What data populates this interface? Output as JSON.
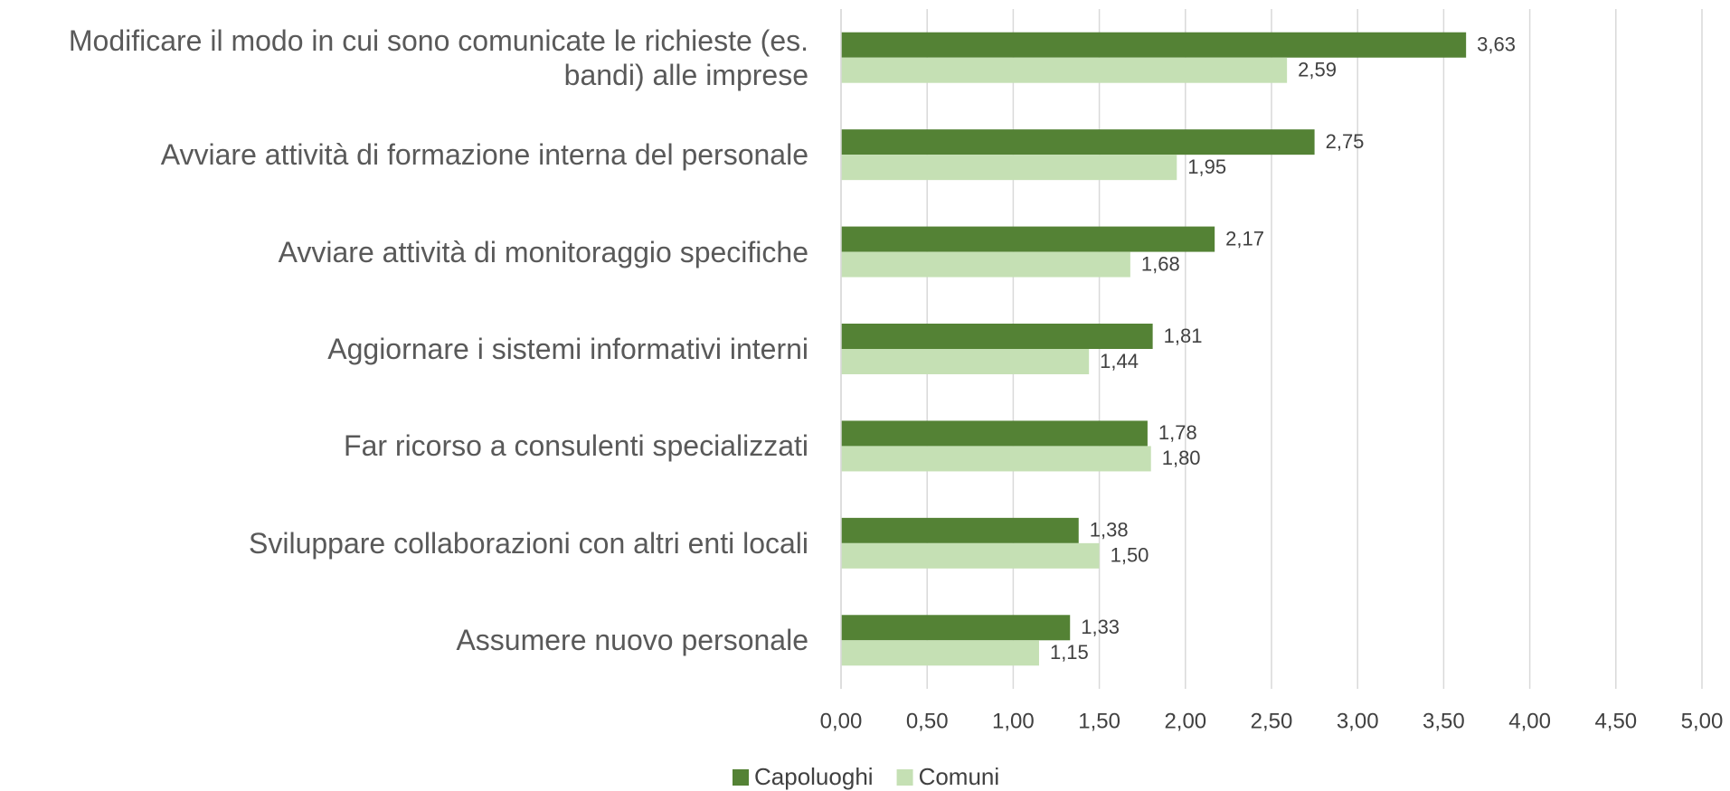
{
  "chart_data": {
    "type": "hbar",
    "categories": [
      "Modificare il modo in cui sono comunicate le richieste (es. bandi) alle imprese",
      "Avviare attività di formazione interna del personale",
      "Avviare attività di monitoraggio specifiche",
      "Aggiornare i sistemi informativi interni",
      "Far ricorso a consulenti specializzati",
      "Sviluppare collaborazioni con altri enti locali",
      "Assumere nuovo personale"
    ],
    "series": [
      {
        "name": "Capoluoghi",
        "color": "#548235",
        "values": [
          3.63,
          2.75,
          2.17,
          1.81,
          1.78,
          1.38,
          1.33
        ],
        "value_labels": [
          "3,63",
          "2,75",
          "2,17",
          "1,81",
          "1,78",
          "1,38",
          "1,33"
        ]
      },
      {
        "name": "Comuni",
        "color": "#c5e0b4",
        "values": [
          2.59,
          1.95,
          1.68,
          1.44,
          1.8,
          1.5,
          1.15
        ],
        "value_labels": [
          "2,59",
          "1,95",
          "1,68",
          "1,44",
          "1,80",
          "1,50",
          "1,15"
        ]
      }
    ],
    "xlim": [
      0,
      5
    ],
    "xticks": [
      {
        "value": 0,
        "label": "0,00"
      },
      {
        "value": 0.5,
        "label": "0,50"
      },
      {
        "value": 1,
        "label": "1,00"
      },
      {
        "value": 1.5,
        "label": "1,50"
      },
      {
        "value": 2,
        "label": "2,00"
      },
      {
        "value": 2.5,
        "label": "2,50"
      },
      {
        "value": 3,
        "label": "3,00"
      },
      {
        "value": 3.5,
        "label": "3,50"
      },
      {
        "value": 4,
        "label": "4,00"
      },
      {
        "value": 4.5,
        "label": "4,50"
      },
      {
        "value": 5,
        "label": "5,00"
      }
    ],
    "grid": true,
    "legend": "bottom"
  }
}
